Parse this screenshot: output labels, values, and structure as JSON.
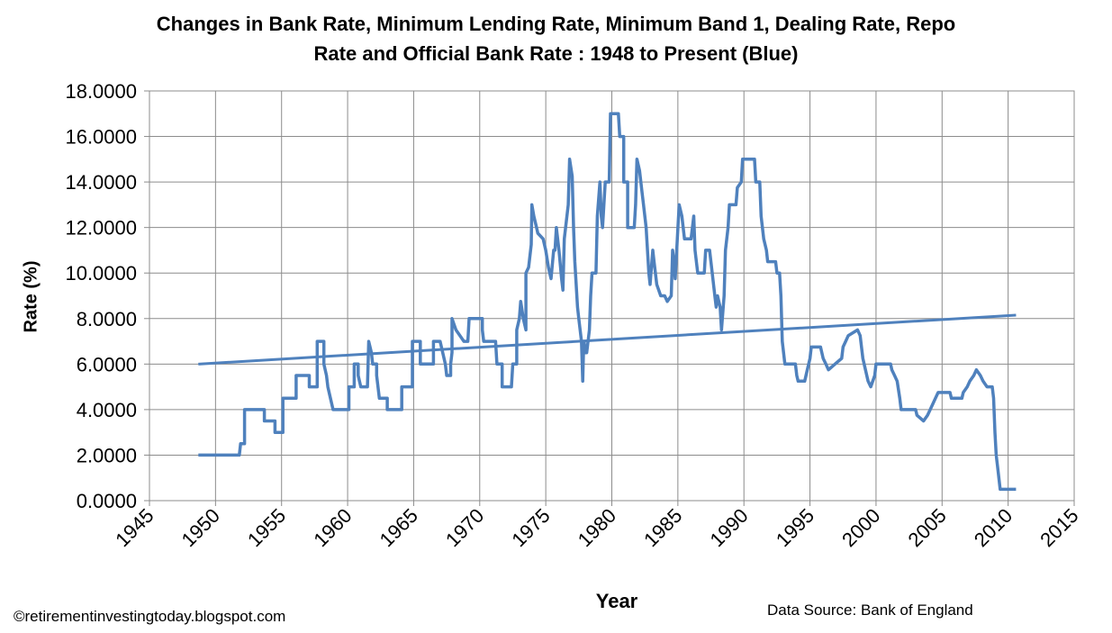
{
  "chart_data": {
    "type": "line",
    "title_line1": "Changes in Bank Rate, Minimum Lending Rate, Minimum Band 1,  Dealing Rate, Repo",
    "title_line2": "Rate and Official Bank Rate   : 1948 to Present (Blue)",
    "xlabel": "Year",
    "ylabel": "Rate (%)",
    "xlim": [
      1945,
      2015
    ],
    "ylim": [
      0,
      18
    ],
    "x_ticks": [
      "1945",
      "1950",
      "1955",
      "1960",
      "1965",
      "1970",
      "1975",
      "1980",
      "1985",
      "1990",
      "1995",
      "2000",
      "2005",
      "2010",
      "2015"
    ],
    "y_ticks": [
      "0.0000",
      "2.0000",
      "4.0000",
      "6.0000",
      "8.0000",
      "10.0000",
      "12.0000",
      "14.0000",
      "16.0000",
      "18.0000"
    ],
    "grid": true,
    "legend": "none",
    "line_color": "#4F81BD",
    "series": [
      {
        "values_xy": [
          [
            1948.7,
            2
          ],
          [
            1951.8,
            2
          ],
          [
            1951.9,
            2.5
          ],
          [
            1952.2,
            2.5
          ],
          [
            1952.2,
            4
          ],
          [
            1953.7,
            4
          ],
          [
            1953.7,
            3.5
          ],
          [
            1954.5,
            3.5
          ],
          [
            1954.5,
            3
          ],
          [
            1955.1,
            3
          ],
          [
            1955.1,
            4.5
          ],
          [
            1956.1,
            4.5
          ],
          [
            1956.1,
            5.5
          ],
          [
            1957.1,
            5.5
          ],
          [
            1957.1,
            5
          ],
          [
            1957.7,
            5
          ],
          [
            1957.7,
            7
          ],
          [
            1958.2,
            7
          ],
          [
            1958.2,
            6
          ],
          [
            1958.4,
            5.5
          ],
          [
            1958.5,
            5
          ],
          [
            1958.7,
            4.5
          ],
          [
            1958.9,
            4
          ],
          [
            1960.1,
            4
          ],
          [
            1960.1,
            5
          ],
          [
            1960.5,
            5
          ],
          [
            1960.5,
            6
          ],
          [
            1960.8,
            6
          ],
          [
            1960.8,
            5.5
          ],
          [
            1961.0,
            5
          ],
          [
            1961.5,
            5
          ],
          [
            1961.6,
            7
          ],
          [
            1961.8,
            6.5
          ],
          [
            1961.9,
            6
          ],
          [
            1962.2,
            6
          ],
          [
            1962.2,
            5.5
          ],
          [
            1962.3,
            5
          ],
          [
            1962.4,
            4.5
          ],
          [
            1963.0,
            4.5
          ],
          [
            1963.0,
            4
          ],
          [
            1964.1,
            4
          ],
          [
            1964.1,
            5
          ],
          [
            1964.9,
            5
          ],
          [
            1964.9,
            7
          ],
          [
            1965.5,
            7
          ],
          [
            1965.5,
            6
          ],
          [
            1966.5,
            6
          ],
          [
            1966.5,
            7
          ],
          [
            1967.0,
            7
          ],
          [
            1967.2,
            6.5
          ],
          [
            1967.4,
            6
          ],
          [
            1967.5,
            5.5
          ],
          [
            1967.8,
            5.5
          ],
          [
            1967.8,
            6
          ],
          [
            1967.9,
            6.5
          ],
          [
            1967.9,
            8
          ],
          [
            1968.2,
            7.5
          ],
          [
            1968.8,
            7
          ],
          [
            1969.1,
            7
          ],
          [
            1969.2,
            8
          ],
          [
            1970.2,
            8
          ],
          [
            1970.2,
            7.5
          ],
          [
            1970.3,
            7
          ],
          [
            1971.2,
            7
          ],
          [
            1971.3,
            6
          ],
          [
            1971.7,
            6
          ],
          [
            1971.7,
            5
          ],
          [
            1972.4,
            5
          ],
          [
            1972.5,
            6
          ],
          [
            1972.8,
            6
          ],
          [
            1972.8,
            7.5
          ],
          [
            1973.0,
            8
          ],
          [
            1973.1,
            8.75
          ],
          [
            1973.3,
            8
          ],
          [
            1973.5,
            7.5
          ],
          [
            1973.5,
            10
          ],
          [
            1973.7,
            10.25
          ],
          [
            1973.9,
            11.25
          ],
          [
            1973.95,
            13
          ],
          [
            1974.1,
            12.5
          ],
          [
            1974.3,
            12
          ],
          [
            1974.4,
            11.75
          ],
          [
            1974.8,
            11.5
          ],
          [
            1975.0,
            11
          ],
          [
            1975.2,
            10.25
          ],
          [
            1975.4,
            9.75
          ],
          [
            1975.6,
            11
          ],
          [
            1975.7,
            11
          ],
          [
            1975.8,
            12
          ],
          [
            1976.0,
            11
          ],
          [
            1976.2,
            9.75
          ],
          [
            1976.3,
            9.25
          ],
          [
            1976.4,
            11.5
          ],
          [
            1976.7,
            13
          ],
          [
            1976.8,
            15
          ],
          [
            1977.0,
            14.25
          ],
          [
            1977.1,
            12
          ],
          [
            1977.2,
            10.5
          ],
          [
            1977.4,
            8.5
          ],
          [
            1977.5,
            8
          ],
          [
            1977.6,
            7.5
          ],
          [
            1977.7,
            7
          ],
          [
            1977.8,
            5.25
          ],
          [
            1977.85,
            6.5
          ],
          [
            1977.9,
            7
          ],
          [
            1978.0,
            6.5
          ],
          [
            1978.1,
            6.5
          ],
          [
            1978.3,
            7.5
          ],
          [
            1978.4,
            9
          ],
          [
            1978.5,
            10
          ],
          [
            1978.8,
            10
          ],
          [
            1978.9,
            12.5
          ],
          [
            1979.1,
            14
          ],
          [
            1979.2,
            12.5
          ],
          [
            1979.3,
            12
          ],
          [
            1979.5,
            14
          ],
          [
            1979.8,
            14
          ],
          [
            1979.9,
            17
          ],
          [
            1980.5,
            17
          ],
          [
            1980.6,
            16
          ],
          [
            1980.9,
            16
          ],
          [
            1980.9,
            14
          ],
          [
            1981.2,
            14
          ],
          [
            1981.2,
            12
          ],
          [
            1981.7,
            12
          ],
          [
            1981.8,
            13
          ],
          [
            1981.9,
            15
          ],
          [
            1982.1,
            14.5
          ],
          [
            1982.3,
            13.5
          ],
          [
            1982.4,
            13
          ],
          [
            1982.6,
            12
          ],
          [
            1982.7,
            11
          ],
          [
            1982.8,
            10
          ],
          [
            1982.9,
            9.5
          ],
          [
            1983.1,
            11
          ],
          [
            1983.2,
            10.5
          ],
          [
            1983.3,
            10
          ],
          [
            1983.4,
            9.5
          ],
          [
            1983.7,
            9
          ],
          [
            1984.0,
            9
          ],
          [
            1984.2,
            8.75
          ],
          [
            1984.5,
            9
          ],
          [
            1984.6,
            11
          ],
          [
            1984.7,
            10.5
          ],
          [
            1984.8,
            9.75
          ],
          [
            1985.0,
            12
          ],
          [
            1985.1,
            13
          ],
          [
            1985.3,
            12.5
          ],
          [
            1985.5,
            11.5
          ],
          [
            1986.0,
            11.5
          ],
          [
            1986.1,
            12
          ],
          [
            1986.2,
            12.5
          ],
          [
            1986.3,
            11
          ],
          [
            1986.5,
            10
          ],
          [
            1987.0,
            10
          ],
          [
            1987.1,
            11
          ],
          [
            1987.4,
            11
          ],
          [
            1987.6,
            10
          ],
          [
            1987.8,
            9
          ],
          [
            1987.9,
            8.5
          ],
          [
            1988.0,
            9
          ],
          [
            1988.2,
            8.5
          ],
          [
            1988.3,
            7.5
          ],
          [
            1988.5,
            9
          ],
          [
            1988.6,
            11
          ],
          [
            1988.8,
            12
          ],
          [
            1988.9,
            13
          ],
          [
            1989.4,
            13
          ],
          [
            1989.5,
            13.75
          ],
          [
            1989.8,
            14
          ],
          [
            1989.9,
            15
          ],
          [
            1990.8,
            15
          ],
          [
            1990.9,
            14
          ],
          [
            1991.2,
            14
          ],
          [
            1991.3,
            12.5
          ],
          [
            1991.5,
            11.5
          ],
          [
            1991.7,
            11
          ],
          [
            1991.8,
            10.5
          ],
          [
            1992.4,
            10.5
          ],
          [
            1992.5,
            10
          ],
          [
            1992.7,
            10
          ],
          [
            1992.8,
            9
          ],
          [
            1992.9,
            7
          ],
          [
            1993.1,
            6
          ],
          [
            1993.9,
            6
          ],
          [
            1994.0,
            5.5
          ],
          [
            1994.1,
            5.25
          ],
          [
            1994.6,
            5.25
          ],
          [
            1994.8,
            5.75
          ],
          [
            1995.0,
            6.25
          ],
          [
            1995.1,
            6.75
          ],
          [
            1995.8,
            6.75
          ],
          [
            1996.0,
            6.25
          ],
          [
            1996.2,
            6
          ],
          [
            1996.4,
            5.75
          ],
          [
            1996.9,
            6
          ],
          [
            1997.4,
            6.25
          ],
          [
            1997.5,
            6.75
          ],
          [
            1997.7,
            7
          ],
          [
            1997.9,
            7.25
          ],
          [
            1998.6,
            7.5
          ],
          [
            1998.8,
            7.25
          ],
          [
            1998.9,
            6.75
          ],
          [
            1999.0,
            6.25
          ],
          [
            1999.2,
            5.75
          ],
          [
            1999.4,
            5.25
          ],
          [
            1999.6,
            5
          ],
          [
            1999.9,
            5.5
          ],
          [
            2000.0,
            6
          ],
          [
            2001.1,
            6
          ],
          [
            2001.2,
            5.75
          ],
          [
            2001.4,
            5.5
          ],
          [
            2001.6,
            5.25
          ],
          [
            2001.8,
            4.5
          ],
          [
            2001.9,
            4
          ],
          [
            2003.0,
            4
          ],
          [
            2003.1,
            3.75
          ],
          [
            2003.6,
            3.5
          ],
          [
            2003.9,
            3.75
          ],
          [
            2004.1,
            4
          ],
          [
            2004.3,
            4.25
          ],
          [
            2004.5,
            4.5
          ],
          [
            2004.7,
            4.75
          ],
          [
            2005.6,
            4.75
          ],
          [
            2005.7,
            4.5
          ],
          [
            2006.5,
            4.5
          ],
          [
            2006.6,
            4.75
          ],
          [
            2006.9,
            5
          ],
          [
            2007.1,
            5.25
          ],
          [
            2007.4,
            5.5
          ],
          [
            2007.6,
            5.75
          ],
          [
            2007.9,
            5.5
          ],
          [
            2008.1,
            5.25
          ],
          [
            2008.4,
            5
          ],
          [
            2008.8,
            5
          ],
          [
            2008.9,
            4.5
          ],
          [
            2009.0,
            3
          ],
          [
            2009.1,
            2
          ],
          [
            2009.2,
            1.5
          ],
          [
            2009.4,
            0.5
          ],
          [
            2010.6,
            0.5
          ]
        ]
      },
      {
        "trendline": [
          [
            1948.7,
            6.0
          ],
          [
            2010.6,
            8.15
          ]
        ]
      }
    ]
  },
  "footer": {
    "copyright": "©retirementinvestingtoday.blogspot.com",
    "source": "Data Source: Bank of England"
  }
}
